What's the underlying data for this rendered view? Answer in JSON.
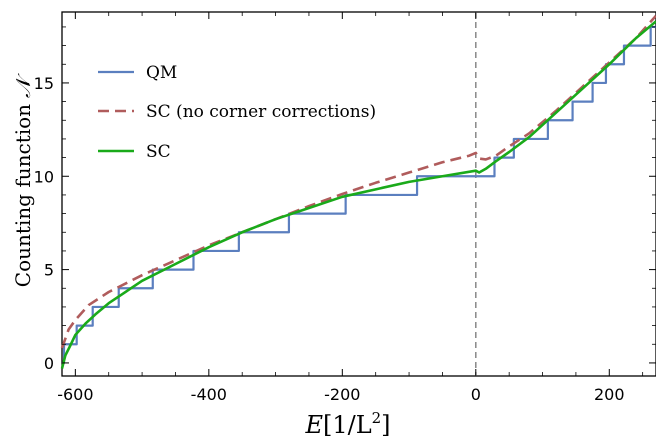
{
  "chart_data": {
    "type": "line",
    "xlabel_var": "E",
    "xlabel_unit": "[1/L",
    "xlabel_exp": "2",
    "xlabel_close": "]",
    "ylabel": "Counting function",
    "ylabel_symbol": "𝒩",
    "xlim": [
      -620,
      270
    ],
    "ylim": [
      -0.7,
      18.8
    ],
    "x_ticks": [
      -600,
      -400,
      -200,
      0,
      200
    ],
    "y_ticks": [
      0,
      5,
      10,
      15
    ],
    "grid": false,
    "legend_position": "top-left",
    "reference_line": {
      "x": 0,
      "color": "#888888",
      "dash": "dashed"
    },
    "series": [
      {
        "name": "QM",
        "style": "step",
        "color": "#5b7fbf",
        "dash": "solid",
        "x": [
          -620,
          -617,
          -598,
          -574,
          -535,
          -484,
          -423,
          -355,
          -280,
          -195,
          -88,
          28,
          57,
          108,
          145,
          175,
          195,
          222,
          262,
          270
        ],
        "y": [
          0,
          1,
          2,
          3,
          4,
          5,
          6,
          7,
          8,
          9,
          10,
          11,
          12,
          13,
          14,
          15,
          16,
          17,
          18,
          18
        ]
      },
      {
        "name": "SC (no corner corrections)",
        "style": "line",
        "color": "#b05c5c",
        "dash": "dashed",
        "x": [
          -620,
          -610,
          -600,
          -580,
          -550,
          -500,
          -450,
          -400,
          -350,
          -300,
          -250,
          -200,
          -150,
          -100,
          -50,
          -10,
          0,
          5,
          15,
          30,
          50,
          80,
          120,
          160,
          200,
          240,
          270
        ],
        "y": [
          0.8,
          1.8,
          2.3,
          3.1,
          3.8,
          4.7,
          5.5,
          6.3,
          7.0,
          7.7,
          8.4,
          9.05,
          9.65,
          10.2,
          10.75,
          11.1,
          11.25,
          10.95,
          10.9,
          11.1,
          11.6,
          12.3,
          13.5,
          14.8,
          16.1,
          17.4,
          18.6
        ]
      },
      {
        "name": "SC",
        "style": "line",
        "color": "#1aaa1a",
        "dash": "solid",
        "x": [
          -620,
          -615,
          -608,
          -600,
          -585,
          -570,
          -550,
          -500,
          -450,
          -400,
          -350,
          -300,
          -250,
          -200,
          -150,
          -100,
          -50,
          0,
          5,
          15,
          30,
          50,
          80,
          120,
          160,
          200,
          240,
          270
        ],
        "y": [
          -0.3,
          0.4,
          0.9,
          1.5,
          2.1,
          2.6,
          3.2,
          4.4,
          5.3,
          6.2,
          7.0,
          7.7,
          8.3,
          8.9,
          9.3,
          9.7,
          10.0,
          10.3,
          10.2,
          10.4,
          10.8,
          11.3,
          12.1,
          13.4,
          14.7,
          16.0,
          17.4,
          18.3
        ]
      }
    ]
  }
}
